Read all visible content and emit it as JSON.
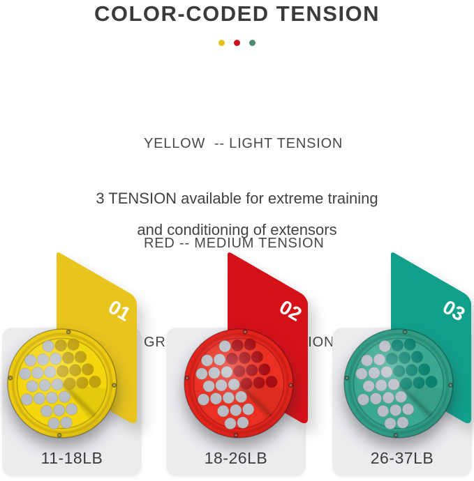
{
  "title": "COLOR-CODED TENSION",
  "legend_dots": [
    {
      "name": "yellow",
      "color": "#e5c01d"
    },
    {
      "name": "red",
      "color": "#cb1120"
    },
    {
      "name": "green",
      "color": "#4c8b70"
    }
  ],
  "tension_lines": [
    "YELLOW  -- LIGHT TENSION",
    "RED -- MEDIUM TENSION",
    "GREEN -- HEAVY TENSION"
  ],
  "description_lines": [
    "3 TENSION available for extreme training",
    "and conditioning of extensors"
  ],
  "products": [
    {
      "number": "01",
      "label": "11-18LB",
      "color_name": "yellow",
      "panel_color": "#e8c41e",
      "rim_color": "#ecca12",
      "face_color": "#f3d60e",
      "hole_dark": "#c0a00f",
      "hole_light": "#b8bdc4"
    },
    {
      "number": "02",
      "label": "18-26LB",
      "color_name": "red",
      "panel_color": "#d41119",
      "rim_color": "#e2231c",
      "face_color": "#ea3023",
      "hole_dark": "#a50d12",
      "hole_light": "#b8bdc4"
    },
    {
      "number": "03",
      "label": "26-37LB",
      "color_name": "green",
      "panel_color": "#12a08b",
      "rim_color": "#2f9e85",
      "face_color": "#3aa98f",
      "hole_dark": "#0b8170",
      "hole_light": "#b8bdc4"
    }
  ],
  "colors": {
    "background": "#ffffff",
    "card_background": "#ebecee",
    "title_text": "#3a3a3c",
    "body_text": "#48484a",
    "number_text": "#ffffff"
  }
}
